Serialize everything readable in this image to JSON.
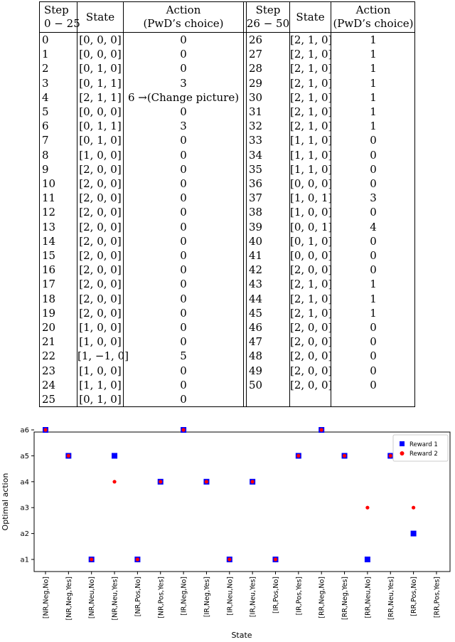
{
  "table": {
    "headers": {
      "step_left": [
        "Step",
        "0 − 25"
      ],
      "state": "State",
      "action": [
        "Action",
        "(PwD’s choice)"
      ],
      "step_right": [
        "Step",
        "26 − 50"
      ]
    },
    "left_rows": [
      {
        "step": "0",
        "state": "[0, 0, 0]",
        "action": "0"
      },
      {
        "step": "1",
        "state": "[0, 0, 0]",
        "action": "0"
      },
      {
        "step": "2",
        "state": "[0, 1, 0]",
        "action": "0"
      },
      {
        "step": "3",
        "state": "[0, 1, 1]",
        "action": "3"
      },
      {
        "step": "4",
        "state": "[2, 1, 1]",
        "action": "6 →(Change picture)"
      },
      {
        "step": "5",
        "state": "[0, 0, 0]",
        "action": "0"
      },
      {
        "step": "6",
        "state": "[0, 1, 1]",
        "action": "3"
      },
      {
        "step": "7",
        "state": "[0, 1, 0]",
        "action": "0"
      },
      {
        "step": "8",
        "state": "[1, 0, 0]",
        "action": "0"
      },
      {
        "step": "9",
        "state": "[2, 0, 0]",
        "action": "0"
      },
      {
        "step": "10",
        "state": "[2, 0, 0]",
        "action": "0"
      },
      {
        "step": "11",
        "state": "[2, 0, 0]",
        "action": "0"
      },
      {
        "step": "12",
        "state": "[2, 0, 0]",
        "action": "0"
      },
      {
        "step": "13",
        "state": "[2, 0, 0]",
        "action": "0"
      },
      {
        "step": "14",
        "state": "[2, 0, 0]",
        "action": "0"
      },
      {
        "step": "15",
        "state": "[2, 0, 0]",
        "action": "0"
      },
      {
        "step": "16",
        "state": "[2, 0, 0]",
        "action": "0"
      },
      {
        "step": "17",
        "state": "[2, 0, 0]",
        "action": "0"
      },
      {
        "step": "18",
        "state": "[2, 0, 0]",
        "action": "0"
      },
      {
        "step": "19",
        "state": "[2, 0, 0]",
        "action": "0"
      },
      {
        "step": "20",
        "state": "[1, 0, 0]",
        "action": "0"
      },
      {
        "step": "21",
        "state": "[1, 0, 0]",
        "action": "0"
      },
      {
        "step": "22",
        "state": "[1, −1, 0]",
        "action": "5"
      },
      {
        "step": "23",
        "state": "[1, 0, 0]",
        "action": "0"
      },
      {
        "step": "24",
        "state": "[1, 1, 0]",
        "action": "0"
      },
      {
        "step": "25",
        "state": "[0, 1, 0]",
        "action": "0"
      }
    ],
    "right_rows": [
      {
        "step": "26",
        "state": "[2, 1, 0]",
        "action": "1"
      },
      {
        "step": "27",
        "state": "[2, 1, 0]",
        "action": "1"
      },
      {
        "step": "28",
        "state": "[2, 1, 0]",
        "action": "1"
      },
      {
        "step": "29",
        "state": "[2, 1, 0]",
        "action": "1"
      },
      {
        "step": "30",
        "state": "[2, 1, 0]",
        "action": "1"
      },
      {
        "step": "31",
        "state": "[2, 1, 0]",
        "action": "1"
      },
      {
        "step": "32",
        "state": "[2, 1, 0]",
        "action": "1"
      },
      {
        "step": "33",
        "state": "[1, 1, 0]",
        "action": "0"
      },
      {
        "step": "34",
        "state": "[1, 1, 0]",
        "action": "0"
      },
      {
        "step": "35",
        "state": "[1, 1, 0]",
        "action": "0"
      },
      {
        "step": "36",
        "state": "[0, 0, 0]",
        "action": "0"
      },
      {
        "step": "37",
        "state": "[1, 0, 1]",
        "action": "3"
      },
      {
        "step": "38",
        "state": "[1, 0, 0]",
        "action": "0"
      },
      {
        "step": "39",
        "state": "[0, 0, 1]",
        "action": "4"
      },
      {
        "step": "40",
        "state": "[0, 1, 0]",
        "action": "0"
      },
      {
        "step": "41",
        "state": "[0, 0, 0]",
        "action": "0"
      },
      {
        "step": "42",
        "state": "[2, 0, 0]",
        "action": "0"
      },
      {
        "step": "43",
        "state": "[2, 1, 0]",
        "action": "1"
      },
      {
        "step": "44",
        "state": "[2, 1, 0]",
        "action": "1"
      },
      {
        "step": "45",
        "state": "[2, 1, 0]",
        "action": "1"
      },
      {
        "step": "46",
        "state": "[2, 0, 0]",
        "action": "0"
      },
      {
        "step": "47",
        "state": "[2, 0, 0]",
        "action": "0"
      },
      {
        "step": "48",
        "state": "[2, 0, 0]",
        "action": "0"
      },
      {
        "step": "49",
        "state": "[2, 0, 0]",
        "action": "0"
      },
      {
        "step": "50",
        "state": "[2, 0, 0]",
        "action": "0"
      }
    ]
  },
  "chart_data": {
    "type": "scatter",
    "title": "",
    "xlabel": "State",
    "ylabel": "Optimal action",
    "categories": [
      "[NR,Neg,No]",
      "[NR,Neg,Yes]",
      "[NR,Neu,No]",
      "[NR,Neu,Yes]",
      "[NR,Pos,No]",
      "[NR,Pos,Yes]",
      "[IR,Neg,No]",
      "[IR,Neg,Yes]",
      "[IR,Neu,No]",
      "[IR,Neu,Yes]",
      "[IR,Pos,No]",
      "[IR,Pos,Yes]",
      "[RR,Neg,No]",
      "[RR,Neg,Yes]",
      "[RR,Neu,No]",
      "[RR,Neu,Yes]",
      "[RR,Pos,No]",
      "[RR,Pos,Yes]"
    ],
    "y_ticks": [
      "a1",
      "a2",
      "a3",
      "a4",
      "a5",
      "a6"
    ],
    "grid": false,
    "legend": "top-right",
    "series": [
      {
        "name": "Reward 1",
        "marker": "square",
        "color": "#0000ff",
        "values": [
          6,
          5,
          1,
          5,
          1,
          4,
          6,
          4,
          1,
          4,
          1,
          5,
          6,
          5,
          1,
          5,
          2,
          5
        ]
      },
      {
        "name": "Reward 2",
        "marker": "circle",
        "color": "#ff0000",
        "values": [
          6,
          5,
          1,
          4,
          1,
          4,
          6,
          4,
          1,
          4,
          1,
          5,
          6,
          5,
          3,
          5,
          3,
          5
        ]
      }
    ]
  }
}
